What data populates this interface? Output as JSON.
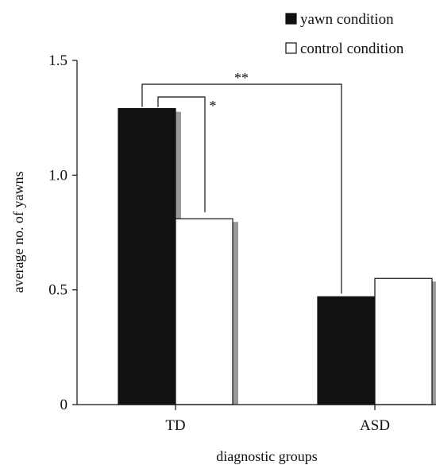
{
  "chart_data": {
    "type": "bar",
    "title": "",
    "xlabel": "diagnostic groups",
    "ylabel": "average no. of yawns",
    "ylim": [
      0,
      1.5
    ],
    "yticks": [
      "0",
      "0.5",
      "1.0",
      "1.5"
    ],
    "ytick_values": [
      0,
      0.5,
      1.0,
      1.5
    ],
    "categories": [
      "TD",
      "ASD"
    ],
    "series": [
      {
        "name": "yawn condition",
        "values": [
          1.29,
          0.47
        ],
        "color": "#111111"
      },
      {
        "name": "control condition",
        "values": [
          0.81,
          0.55
        ],
        "color": "#ffffff"
      }
    ],
    "shadow_color": "#999999",
    "legend_position": "top-right",
    "grid": false,
    "annotations": [
      {
        "text": "*",
        "between": "TD yawn condition vs TD control condition"
      },
      {
        "text": "**",
        "between": "TD yawn condition vs ASD yawn condition"
      }
    ]
  }
}
